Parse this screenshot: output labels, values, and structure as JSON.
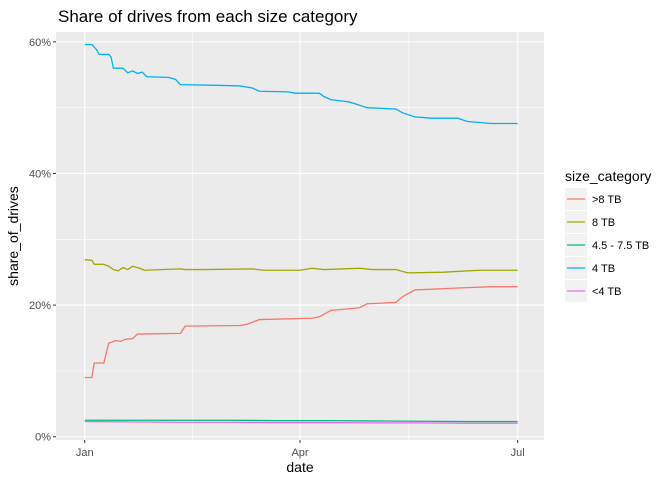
{
  "chart_data": {
    "type": "line",
    "title": "Share of drives from each size category",
    "xlabel": "date",
    "ylabel": "share_of_drives",
    "x_ticks": [
      {
        "label": "Jan",
        "day": 0
      },
      {
        "label": "Apr",
        "day": 90
      },
      {
        "label": "Jul",
        "day": 181
      }
    ],
    "xlim": [
      -12,
      192
    ],
    "ylim": [
      -0.5,
      61.5
    ],
    "y_ticks": [
      {
        "label": "0%",
        "value": 0
      },
      {
        "label": "20%",
        "value": 20
      },
      {
        "label": "40%",
        "value": 40
      },
      {
        "label": "60%",
        "value": 60
      }
    ],
    "legend": {
      "title": "size_category",
      "position": "right"
    },
    "series": [
      {
        "name": ">8 TB",
        "color": "#F8766D",
        "points": [
          [
            0,
            9.0
          ],
          [
            3,
            9.0
          ],
          [
            4,
            11.2
          ],
          [
            8,
            11.2
          ],
          [
            10,
            14.2
          ],
          [
            13,
            14.6
          ],
          [
            15,
            14.5
          ],
          [
            17,
            14.8
          ],
          [
            20,
            14.9
          ],
          [
            22,
            15.6
          ],
          [
            40,
            15.7
          ],
          [
            42,
            16.8
          ],
          [
            65,
            16.9
          ],
          [
            68,
            17.1
          ],
          [
            73,
            17.8
          ],
          [
            95,
            18.0
          ],
          [
            98,
            18.2
          ],
          [
            103,
            19.2
          ],
          [
            115,
            19.6
          ],
          [
            118,
            20.2
          ],
          [
            130,
            20.4
          ],
          [
            133,
            21.3
          ],
          [
            138,
            22.3
          ],
          [
            156,
            22.6
          ],
          [
            170,
            22.8
          ],
          [
            181,
            22.8
          ]
        ]
      },
      {
        "name": "8 TB",
        "color": "#A3A500",
        "points": [
          [
            0,
            26.9
          ],
          [
            3,
            26.8
          ],
          [
            4,
            26.2
          ],
          [
            8,
            26.2
          ],
          [
            10,
            25.9
          ],
          [
            12,
            25.4
          ],
          [
            14,
            25.2
          ],
          [
            16,
            25.7
          ],
          [
            18,
            25.4
          ],
          [
            20,
            25.9
          ],
          [
            23,
            25.6
          ],
          [
            25,
            25.3
          ],
          [
            40,
            25.5
          ],
          [
            42,
            25.4
          ],
          [
            50,
            25.4
          ],
          [
            70,
            25.5
          ],
          [
            75,
            25.3
          ],
          [
            90,
            25.3
          ],
          [
            95,
            25.6
          ],
          [
            100,
            25.4
          ],
          [
            115,
            25.6
          ],
          [
            120,
            25.4
          ],
          [
            130,
            25.4
          ],
          [
            135,
            24.9
          ],
          [
            150,
            25.0
          ],
          [
            165,
            25.3
          ],
          [
            181,
            25.3
          ]
        ]
      },
      {
        "name": "4.5 - 7.5 TB",
        "color": "#00BF7D",
        "points": [
          [
            0,
            2.5
          ],
          [
            20,
            2.5
          ],
          [
            40,
            2.5
          ],
          [
            60,
            2.5
          ],
          [
            80,
            2.45
          ],
          [
            100,
            2.45
          ],
          [
            120,
            2.4
          ],
          [
            140,
            2.35
          ],
          [
            160,
            2.3
          ],
          [
            181,
            2.3
          ]
        ]
      },
      {
        "name": "4 TB",
        "color": "#00B0F6",
        "points": [
          [
            0,
            59.6
          ],
          [
            3,
            59.6
          ],
          [
            5,
            58.8
          ],
          [
            6,
            58.1
          ],
          [
            10,
            58.1
          ],
          [
            11,
            57.7
          ],
          [
            12,
            56.0
          ],
          [
            16,
            56.0
          ],
          [
            18,
            55.3
          ],
          [
            20,
            55.6
          ],
          [
            22,
            55.2
          ],
          [
            24,
            55.4
          ],
          [
            26,
            54.7
          ],
          [
            35,
            54.6
          ],
          [
            38,
            54.3
          ],
          [
            40,
            53.5
          ],
          [
            55,
            53.4
          ],
          [
            65,
            53.3
          ],
          [
            70,
            53.0
          ],
          [
            73,
            52.5
          ],
          [
            85,
            52.4
          ],
          [
            88,
            52.2
          ],
          [
            98,
            52.2
          ],
          [
            100,
            51.7
          ],
          [
            103,
            51.2
          ],
          [
            110,
            50.9
          ],
          [
            113,
            50.6
          ],
          [
            118,
            50.0
          ],
          [
            130,
            49.8
          ],
          [
            133,
            49.2
          ],
          [
            138,
            48.6
          ],
          [
            145,
            48.4
          ],
          [
            156,
            48.4
          ],
          [
            160,
            47.9
          ],
          [
            170,
            47.6
          ],
          [
            181,
            47.6
          ]
        ]
      },
      {
        "name": "<4 TB",
        "color": "#E76BF3",
        "points": [
          [
            0,
            2.3
          ],
          [
            20,
            2.25
          ],
          [
            40,
            2.2
          ],
          [
            60,
            2.2
          ],
          [
            80,
            2.15
          ],
          [
            100,
            2.15
          ],
          [
            120,
            2.1
          ],
          [
            140,
            2.1
          ],
          [
            160,
            2.05
          ],
          [
            181,
            2.05
          ]
        ]
      }
    ]
  }
}
